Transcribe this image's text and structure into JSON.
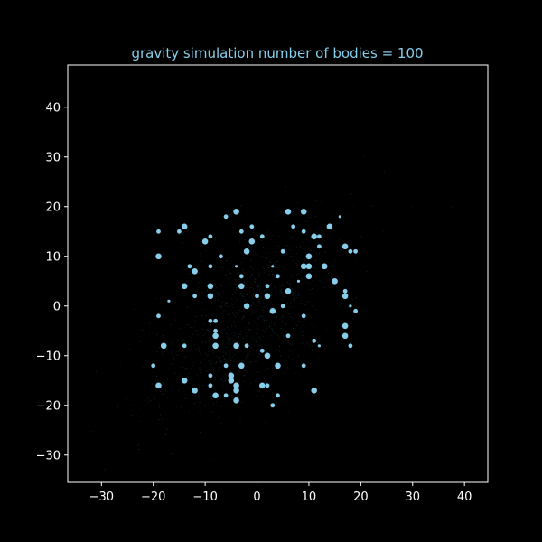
{
  "chart_data": {
    "type": "scatter",
    "title": "gravity simulation number of bodies = 100",
    "xlabel": "",
    "ylabel": "",
    "xlim": [
      -36.5,
      44.5
    ],
    "ylim": [
      -35.5,
      48.5
    ],
    "xticks": [
      -30,
      -20,
      -10,
      0,
      10,
      20,
      30,
      40
    ],
    "yticks": [
      -30,
      -20,
      -10,
      0,
      10,
      20,
      30,
      40
    ],
    "xtick_labels": [
      "−30",
      "−20",
      "−10",
      "0",
      "10",
      "20",
      "30",
      "40"
    ],
    "ytick_labels": [
      "−30",
      "−20",
      "−10",
      "0",
      "10",
      "20",
      "30",
      "40"
    ],
    "grid": false,
    "legend": false,
    "colors": {
      "background": "#000000",
      "axes": "#ffffff",
      "text": "#ffffff",
      "title": "#87ceeb",
      "points": "#87ceeb"
    },
    "points": [
      {
        "x": -19,
        "y": 15,
        "s": 2
      },
      {
        "x": -14,
        "y": 16,
        "s": 3
      },
      {
        "x": -15,
        "y": 15,
        "s": 2
      },
      {
        "x": -10,
        "y": 13,
        "s": 3
      },
      {
        "x": -9,
        "y": 14,
        "s": 2
      },
      {
        "x": -6,
        "y": 18,
        "s": 2
      },
      {
        "x": -4,
        "y": 19,
        "s": 3
      },
      {
        "x": -3,
        "y": 15,
        "s": 2
      },
      {
        "x": -1,
        "y": 16,
        "s": 2
      },
      {
        "x": -1,
        "y": 13,
        "s": 3
      },
      {
        "x": 1,
        "y": 14,
        "s": 2
      },
      {
        "x": 6,
        "y": 19,
        "s": 3
      },
      {
        "x": 9,
        "y": 19,
        "s": 3
      },
      {
        "x": 9,
        "y": 15,
        "s": 2
      },
      {
        "x": 11,
        "y": 14,
        "s": 3
      },
      {
        "x": 14,
        "y": 16,
        "s": 3
      },
      {
        "x": 16,
        "y": 18,
        "s": 1
      },
      {
        "x": 17,
        "y": 12,
        "s": 3
      },
      {
        "x": 18,
        "y": 11,
        "s": 2
      },
      {
        "x": 19,
        "y": 11,
        "s": 2
      },
      {
        "x": -19,
        "y": 10,
        "s": 3
      },
      {
        "x": -7,
        "y": 10,
        "s": 2
      },
      {
        "x": -2,
        "y": 11,
        "s": 3
      },
      {
        "x": -13,
        "y": 8,
        "s": 2
      },
      {
        "x": -12,
        "y": 7,
        "s": 3
      },
      {
        "x": -9,
        "y": 8,
        "s": 2
      },
      {
        "x": -4,
        "y": 8,
        "s": 1
      },
      {
        "x": 3,
        "y": 8,
        "s": 1
      },
      {
        "x": 4,
        "y": 6,
        "s": 2
      },
      {
        "x": 5,
        "y": 11,
        "s": 2
      },
      {
        "x": 7,
        "y": 16,
        "s": 2
      },
      {
        "x": 9,
        "y": 8,
        "s": 3
      },
      {
        "x": 10,
        "y": 8,
        "s": 3
      },
      {
        "x": 10,
        "y": 10,
        "s": 3
      },
      {
        "x": 10,
        "y": 6,
        "s": 3
      },
      {
        "x": 12,
        "y": 12,
        "s": 2
      },
      {
        "x": 13,
        "y": 8,
        "s": 3
      },
      {
        "x": 15,
        "y": 5,
        "s": 3
      },
      {
        "x": -3,
        "y": 6,
        "s": 2
      },
      {
        "x": -14,
        "y": 4,
        "s": 3
      },
      {
        "x": -12,
        "y": 2,
        "s": 2
      },
      {
        "x": -9,
        "y": 4,
        "s": 3
      },
      {
        "x": -9,
        "y": 2,
        "s": 3
      },
      {
        "x": -17,
        "y": 1,
        "s": 1
      },
      {
        "x": -3,
        "y": 4,
        "s": 3
      },
      {
        "x": 0,
        "y": 2,
        "s": 2
      },
      {
        "x": 2,
        "y": 4,
        "s": 2
      },
      {
        "x": 2,
        "y": 2,
        "s": 3
      },
      {
        "x": 6,
        "y": 3,
        "s": 3
      },
      {
        "x": 8,
        "y": 5,
        "s": 1
      },
      {
        "x": 17,
        "y": 3,
        "s": 2
      },
      {
        "x": 17,
        "y": 2,
        "s": 3
      },
      {
        "x": 18,
        "y": 0,
        "s": 1
      },
      {
        "x": 19,
        "y": -1,
        "s": 2
      },
      {
        "x": -2,
        "y": 0,
        "s": 3
      },
      {
        "x": 3,
        "y": -1,
        "s": 3
      },
      {
        "x": 5,
        "y": 0,
        "s": 2
      },
      {
        "x": -19,
        "y": -2,
        "s": 2
      },
      {
        "x": -9,
        "y": -3,
        "s": 2
      },
      {
        "x": -8,
        "y": -3,
        "s": 2
      },
      {
        "x": -8,
        "y": -5,
        "s": 2
      },
      {
        "x": -8,
        "y": -6,
        "s": 3
      },
      {
        "x": 9,
        "y": -2,
        "s": 2
      },
      {
        "x": 17,
        "y": -4,
        "s": 3
      },
      {
        "x": 17,
        "y": -6,
        "s": 3
      },
      {
        "x": 6,
        "y": -6,
        "s": 2
      },
      {
        "x": -18,
        "y": -8,
        "s": 3
      },
      {
        "x": -14,
        "y": -8,
        "s": 2
      },
      {
        "x": -8,
        "y": -8,
        "s": 3
      },
      {
        "x": -4,
        "y": -8,
        "s": 3
      },
      {
        "x": -2,
        "y": -8,
        "s": 2
      },
      {
        "x": 11,
        "y": -7,
        "s": 2
      },
      {
        "x": 12,
        "y": -8,
        "s": 1
      },
      {
        "x": 18,
        "y": -8,
        "s": 2
      },
      {
        "x": 1,
        "y": -9,
        "s": 2
      },
      {
        "x": 2,
        "y": -10,
        "s": 3
      },
      {
        "x": -20,
        "y": -12,
        "s": 2
      },
      {
        "x": -6,
        "y": -12,
        "s": 2
      },
      {
        "x": -3,
        "y": -12,
        "s": 3
      },
      {
        "x": 4,
        "y": -12,
        "s": 3
      },
      {
        "x": 9,
        "y": -12,
        "s": 2
      },
      {
        "x": -14,
        "y": -15,
        "s": 3
      },
      {
        "x": -9,
        "y": -14,
        "s": 2
      },
      {
        "x": -5,
        "y": -14,
        "s": 3
      },
      {
        "x": -5,
        "y": -15,
        "s": 3
      },
      {
        "x": -4,
        "y": -16,
        "s": 3
      },
      {
        "x": -4,
        "y": -17,
        "s": 3
      },
      {
        "x": -19,
        "y": -16,
        "s": 3
      },
      {
        "x": -12,
        "y": -17,
        "s": 3
      },
      {
        "x": -9,
        "y": -16,
        "s": 2
      },
      {
        "x": -8,
        "y": -18,
        "s": 3
      },
      {
        "x": -6,
        "y": -18,
        "s": 2
      },
      {
        "x": -4,
        "y": -19,
        "s": 3
      },
      {
        "x": 1,
        "y": -16,
        "s": 3
      },
      {
        "x": 2,
        "y": -16,
        "s": 2
      },
      {
        "x": 4,
        "y": -18,
        "s": 2
      },
      {
        "x": 3,
        "y": -20,
        "s": 2
      },
      {
        "x": 11,
        "y": -17,
        "s": 3
      },
      {
        "x": 12,
        "y": 14,
        "s": 2
      }
    ]
  }
}
